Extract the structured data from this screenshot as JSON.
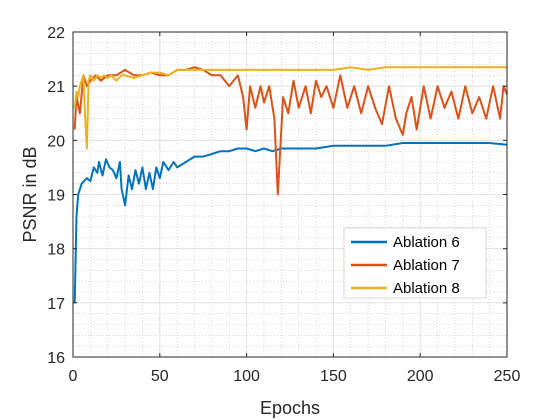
{
  "chart_data": {
    "type": "line",
    "xlabel": "Epochs",
    "ylabel": "PSNR in dB",
    "xlim": [
      0,
      250
    ],
    "ylim": [
      16,
      22
    ],
    "xticks": [
      0,
      50,
      100,
      150,
      200,
      250
    ],
    "yticks": [
      16,
      17,
      18,
      19,
      20,
      21,
      22
    ],
    "xtick_labels": [
      "0",
      "50",
      "100",
      "150",
      "200",
      "250"
    ],
    "ytick_labels": [
      "16",
      "17",
      "18",
      "19",
      "20",
      "21",
      "22"
    ],
    "grid": "major and minor",
    "legend_position": "lower-right",
    "series": [
      {
        "name": "Ablation 6",
        "color": "#0072BD",
        "x": [
          1,
          2,
          3,
          5,
          8,
          10,
          12,
          14,
          15,
          17,
          19,
          21,
          23,
          25,
          27,
          28,
          30,
          32,
          34,
          36,
          38,
          40,
          42,
          44,
          46,
          48,
          50,
          52,
          55,
          58,
          60,
          65,
          70,
          75,
          80,
          85,
          90,
          95,
          100,
          105,
          110,
          115,
          120,
          125,
          130,
          140,
          150,
          160,
          170,
          180,
          190,
          200,
          210,
          220,
          230,
          240,
          250
        ],
        "y": [
          17.0,
          18.6,
          19.0,
          19.2,
          19.3,
          19.25,
          19.5,
          19.4,
          19.6,
          19.35,
          19.65,
          19.5,
          19.45,
          19.3,
          19.6,
          19.1,
          18.8,
          19.35,
          19.1,
          19.45,
          19.2,
          19.5,
          19.1,
          19.4,
          19.1,
          19.5,
          19.3,
          19.6,
          19.45,
          19.6,
          19.5,
          19.6,
          19.7,
          19.7,
          19.75,
          19.8,
          19.8,
          19.85,
          19.85,
          19.8,
          19.85,
          19.8,
          19.85,
          19.85,
          19.85,
          19.85,
          19.9,
          19.9,
          19.9,
          19.9,
          19.95,
          19.95,
          19.95,
          19.95,
          19.95,
          19.95,
          19.92
        ]
      },
      {
        "name": "Ablation 7",
        "color": "#D95319",
        "x": [
          1,
          2,
          4,
          6,
          8,
          10,
          13,
          16,
          20,
          25,
          30,
          35,
          40,
          45,
          50,
          55,
          60,
          65,
          70,
          75,
          80,
          85,
          90,
          95,
          98,
          100,
          102,
          105,
          108,
          110,
          113,
          116,
          118,
          121,
          124,
          127,
          130,
          134,
          137,
          140,
          143,
          146,
          150,
          154,
          158,
          162,
          166,
          170,
          174,
          178,
          182,
          186,
          190,
          192,
          195,
          198,
          202,
          206,
          210,
          214,
          218,
          222,
          226,
          230,
          234,
          238,
          242,
          246,
          248,
          250
        ],
        "y": [
          20.2,
          20.8,
          20.5,
          21.2,
          21.0,
          21.1,
          21.2,
          21.1,
          21.2,
          21.2,
          21.3,
          21.2,
          21.2,
          21.25,
          21.2,
          21.2,
          21.3,
          21.3,
          21.35,
          21.3,
          21.2,
          21.2,
          21.0,
          21.2,
          20.8,
          20.2,
          21.0,
          20.6,
          21.0,
          20.7,
          21.0,
          20.4,
          19.0,
          20.8,
          20.5,
          21.1,
          20.6,
          21.0,
          20.5,
          21.1,
          20.8,
          21.0,
          20.6,
          21.2,
          20.6,
          21.0,
          20.5,
          21.0,
          20.6,
          20.3,
          21.0,
          20.4,
          20.1,
          20.5,
          20.8,
          20.2,
          21.0,
          20.4,
          21.0,
          20.6,
          20.9,
          20.4,
          21.0,
          20.5,
          20.8,
          20.4,
          21.0,
          20.4,
          21.0,
          20.85
        ]
      },
      {
        "name": "Ablation 8",
        "color": "#EDB120",
        "x": [
          1,
          2,
          3,
          4,
          5,
          6,
          7,
          8,
          9,
          10,
          12,
          14,
          16,
          18,
          20,
          22,
          25,
          28,
          30,
          35,
          40,
          45,
          50,
          55,
          60,
          70,
          80,
          90,
          100,
          110,
          120,
          130,
          140,
          150,
          160,
          170,
          180,
          190,
          200,
          210,
          220,
          230,
          240,
          250
        ],
        "y": [
          20.6,
          20.9,
          20.8,
          21.0,
          21.1,
          21.2,
          20.4,
          19.85,
          21.1,
          21.2,
          21.1,
          21.2,
          21.15,
          21.2,
          21.15,
          21.2,
          21.1,
          21.2,
          21.2,
          21.15,
          21.2,
          21.25,
          21.25,
          21.2,
          21.3,
          21.3,
          21.3,
          21.3,
          21.3,
          21.3,
          21.3,
          21.3,
          21.3,
          21.3,
          21.35,
          21.3,
          21.35,
          21.35,
          21.35,
          21.35,
          21.35,
          21.35,
          21.35,
          21.35
        ]
      }
    ]
  }
}
